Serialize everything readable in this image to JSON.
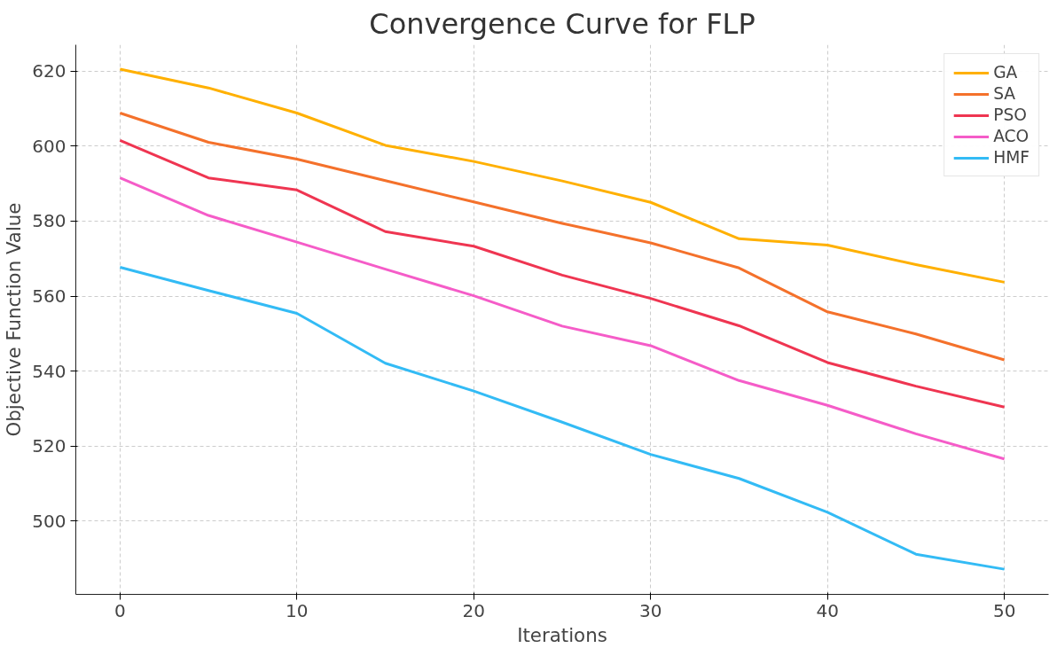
{
  "chart_data": {
    "type": "line",
    "title": "Convergence Curve for FLP",
    "xlabel": "Iterations",
    "ylabel": "Objective Function Value",
    "x": [
      0,
      5,
      10,
      15,
      20,
      25,
      30,
      35,
      40,
      45,
      50
    ],
    "series": [
      {
        "name": "GA",
        "color": "#ffb000",
        "values": [
          620.5,
          615.5,
          608.8,
          600.2,
          595.9,
          590.7,
          585.0,
          575.3,
          573.6,
          568.4,
          563.7
        ]
      },
      {
        "name": "SA",
        "color": "#f4712b",
        "values": [
          608.8,
          601.0,
          596.5,
          590.8,
          585.1,
          579.4,
          574.2,
          567.5,
          555.8,
          549.9,
          543.0
        ]
      },
      {
        "name": "PSO",
        "color": "#ef3551",
        "values": [
          601.5,
          591.5,
          588.3,
          577.2,
          573.3,
          565.6,
          559.4,
          552.1,
          542.3,
          536.0,
          530.4
        ]
      },
      {
        "name": "ACO",
        "color": "#f55cc8",
        "values": [
          591.5,
          581.5,
          574.4,
          567.2,
          560.1,
          552.0,
          546.8,
          537.5,
          530.9,
          523.3,
          516.6
        ]
      },
      {
        "name": "HMF",
        "color": "#33bbf5",
        "values": [
          567.7,
          561.5,
          555.4,
          542.1,
          534.7,
          526.4,
          517.8,
          511.4,
          502.4,
          491.2,
          487.2
        ]
      }
    ],
    "xlim": [
      -2.5,
      52.5
    ],
    "ylim": [
      480.5,
      627
    ],
    "xticks": [
      0,
      10,
      20,
      30,
      40,
      50
    ],
    "yticks": [
      500,
      520,
      540,
      560,
      580,
      600,
      620
    ],
    "grid": true,
    "legend": "top right",
    "line_style": "solid",
    "marker": "none"
  }
}
